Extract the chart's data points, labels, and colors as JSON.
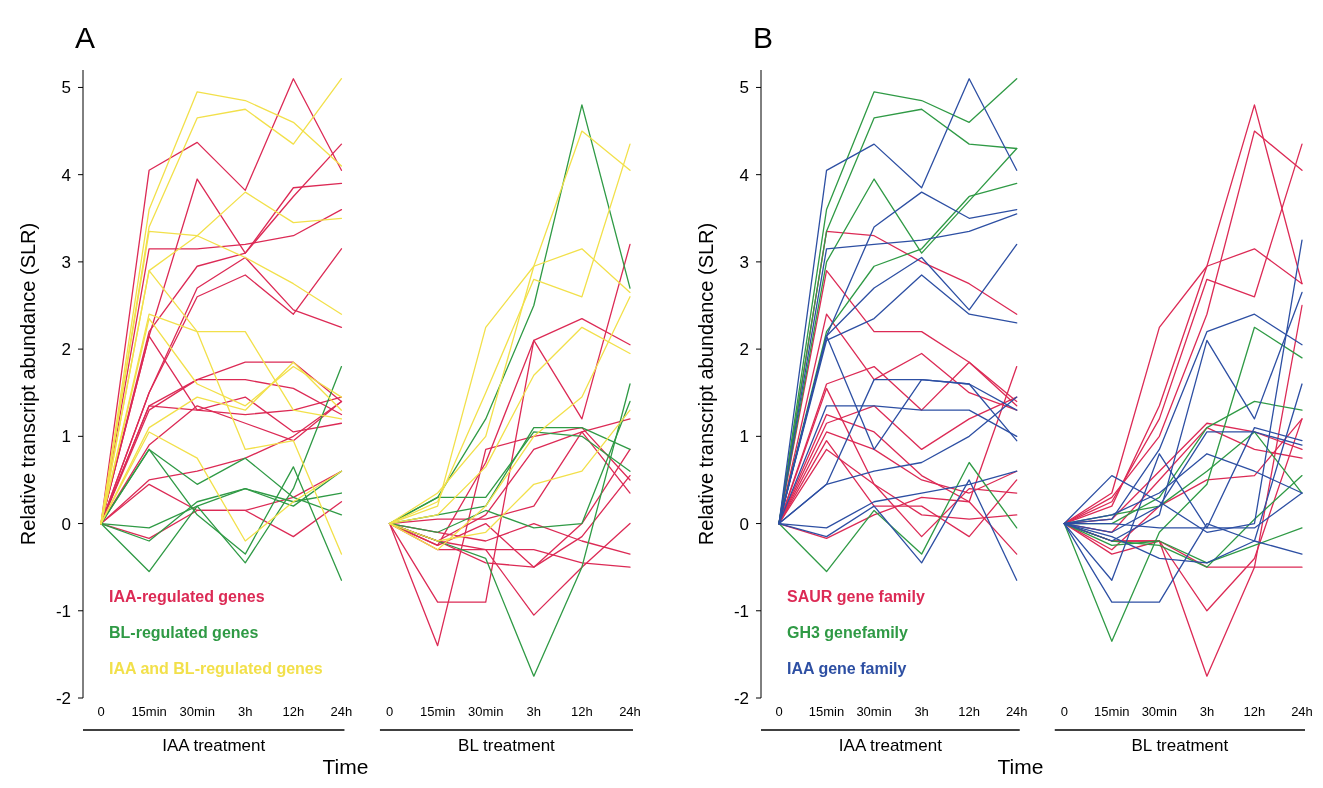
{
  "chart_data": [
    {
      "type": "line",
      "title": "A",
      "ylabel": "Relative transcript abundance (SLR)",
      "xlabel": "Time",
      "annotations": [
        "IAA treatment",
        "BL treatment"
      ],
      "legend": "bottom left",
      "categories": [
        "0",
        "15min",
        "30min",
        "3h",
        "12h",
        "24h",
        "0",
        "15min",
        "30min",
        "3h",
        "12h",
        "24h"
      ],
      "ylim": [
        -2,
        5.2
      ],
      "yticks": [
        -2,
        -1,
        0,
        1,
        2,
        3,
        4,
        5
      ],
      "series": [
        {
          "name": "IAA-regulated genes",
          "color": "#dc2a55",
          "values": [
            0,
            4.05,
            4.37,
            3.82,
            5.1,
            4.05,
            null,
            null,
            null,
            null,
            null,
            null
          ]
        },
        {
          "color": "#dc2a55",
          "values": [
            0,
            2.15,
            3.95,
            3.1,
            3.75,
            4.35,
            null,
            null,
            null,
            null,
            null,
            null
          ]
        },
        {
          "color": "#dc2a55",
          "values": [
            0,
            3.15,
            3.15,
            3.2,
            3.3,
            3.6,
            null,
            null,
            null,
            null,
            null,
            null
          ]
        },
        {
          "color": "#dc2a55",
          "values": [
            0,
            2.2,
            2.95,
            3.1,
            3.85,
            3.9,
            null,
            null,
            null,
            null,
            null,
            null
          ]
        },
        {
          "color": "#dc2a55",
          "values": [
            0,
            1.5,
            2.6,
            2.85,
            2.4,
            3.15,
            null,
            null,
            null,
            null,
            null,
            null
          ]
        },
        {
          "color": "#dc2a55",
          "values": [
            0,
            1.5,
            2.7,
            3.05,
            2.45,
            2.25,
            null,
            null,
            null,
            null,
            null,
            null
          ]
        },
        {
          "color": "#dc2a55",
          "values": [
            0,
            1.35,
            1.65,
            1.85,
            1.85,
            1.4,
            null,
            null,
            null,
            null,
            null,
            null
          ]
        },
        {
          "color": "#dc2a55",
          "values": [
            0,
            1.3,
            1.65,
            1.65,
            1.55,
            1.25,
            null,
            null,
            null,
            null,
            null,
            null
          ]
        },
        {
          "color": "#dc2a55",
          "values": [
            0,
            1.35,
            1.3,
            1.25,
            1.3,
            1.45,
            null,
            null,
            null,
            null,
            null,
            null
          ]
        },
        {
          "color": "#dc2a55",
          "values": [
            0,
            2.15,
            1.3,
            1.45,
            1.05,
            1.15,
            null,
            null,
            null,
            null,
            null,
            null
          ]
        },
        {
          "color": "#dc2a55",
          "values": [
            0,
            0.9,
            1.35,
            1.15,
            0.95,
            1.4,
            null,
            null,
            null,
            null,
            null,
            null
          ]
        },
        {
          "color": "#dc2a55",
          "values": [
            0,
            0.5,
            0.6,
            0.75,
            1.0,
            1.4,
            null,
            null,
            null,
            null,
            null,
            null
          ]
        },
        {
          "color": "#dc2a55",
          "values": [
            0,
            0.45,
            0.15,
            0.15,
            0.3,
            0.6,
            null,
            null,
            null,
            null,
            null,
            null
          ]
        },
        {
          "color": "#dc2a55",
          "values": [
            0,
            -0.17,
            0.15,
            0.15,
            -0.15,
            0.25,
            null,
            null,
            null,
            null,
            null,
            null
          ]
        },
        {
          "color": "#dc2a55",
          "values": [
            null,
            null,
            null,
            null,
            null,
            null,
            0,
            -0.25,
            0.7,
            2.1,
            2.35,
            2.05
          ]
        },
        {
          "color": "#dc2a55",
          "values": [
            null,
            null,
            null,
            null,
            null,
            null,
            0,
            -0.9,
            -0.9,
            2.1,
            1.2,
            3.2
          ]
        },
        {
          "color": "#dc2a55",
          "values": [
            null,
            null,
            null,
            null,
            null,
            null,
            0,
            -1.4,
            0.85,
            1.0,
            1.1,
            0.5
          ]
        },
        {
          "color": "#dc2a55",
          "values": [
            null,
            null,
            null,
            null,
            null,
            null,
            0,
            -0.2,
            0.1,
            0.85,
            1.05,
            1.2
          ]
        },
        {
          "color": "#dc2a55",
          "values": [
            null,
            null,
            null,
            null,
            null,
            null,
            0,
            -0.25,
            0.0,
            -0.5,
            0.0,
            0.85
          ]
        },
        {
          "color": "#dc2a55",
          "values": [
            null,
            null,
            null,
            null,
            null,
            null,
            0,
            -0.2,
            -0.45,
            -0.5,
            -0.15,
            0.55
          ]
        },
        {
          "color": "#dc2a55",
          "values": [
            null,
            null,
            null,
            null,
            null,
            null,
            0,
            -0.3,
            -0.3,
            -1.05,
            -0.5,
            0.0
          ]
        },
        {
          "color": "#dc2a55",
          "values": [
            null,
            null,
            null,
            null,
            null,
            null,
            0,
            0.05,
            0.05,
            0.2,
            1.05,
            0.35
          ]
        },
        {
          "color": "#dc2a55",
          "values": [
            null,
            null,
            null,
            null,
            null,
            null,
            0,
            -0.1,
            -0.2,
            0.0,
            -0.2,
            -0.35
          ]
        },
        {
          "color": "#dc2a55",
          "values": [
            null,
            null,
            null,
            null,
            null,
            null,
            0,
            -0.2,
            -0.3,
            -0.3,
            -0.45,
            -0.5
          ]
        },
        {
          "name": "BL-regulated genes",
          "color": "#2f9a45",
          "values": [
            0,
            0.85,
            0.45,
            0.75,
            0.3,
            0.1,
            null,
            null,
            null,
            null,
            null,
            null
          ]
        },
        {
          "color": "#2f9a45",
          "values": [
            0,
            0.85,
            0.1,
            -0.35,
            0.65,
            -0.65,
            null,
            null,
            null,
            null,
            null,
            null
          ]
        },
        {
          "color": "#2f9a45",
          "values": [
            0,
            -0.05,
            0.2,
            -0.45,
            0.4,
            1.8,
            null,
            null,
            null,
            null,
            null,
            null
          ]
        },
        {
          "color": "#2f9a45",
          "values": [
            0,
            -0.55,
            0.2,
            0.4,
            0.25,
            0.35,
            null,
            null,
            null,
            null,
            null,
            null
          ]
        },
        {
          "color": "#2f9a45",
          "values": [
            0,
            -0.2,
            0.25,
            0.4,
            0.2,
            0.6,
            null,
            null,
            null,
            null,
            null,
            null
          ]
        },
        {
          "color": "#2f9a45",
          "values": [
            null,
            null,
            null,
            null,
            null,
            null,
            0,
            0.3,
            1.2,
            2.5,
            4.8,
            2.7
          ]
        },
        {
          "color": "#2f9a45",
          "values": [
            null,
            null,
            null,
            null,
            null,
            null,
            0,
            -0.2,
            -0.4,
            -1.75,
            -0.5,
            1.6
          ]
        },
        {
          "color": "#2f9a45",
          "values": [
            null,
            null,
            null,
            null,
            null,
            null,
            0,
            0.1,
            0.2,
            1.1,
            1.1,
            0.85
          ]
        },
        {
          "color": "#2f9a45",
          "values": [
            null,
            null,
            null,
            null,
            null,
            null,
            0,
            0.3,
            0.3,
            1.05,
            1.0,
            0.6
          ]
        },
        {
          "color": "#2f9a45",
          "values": [
            null,
            null,
            null,
            null,
            null,
            null,
            0,
            -0.1,
            0.15,
            -0.05,
            0.0,
            1.4
          ]
        },
        {
          "name": "IAA and BL-regulated genes",
          "color": "#f2e04a",
          "values": [
            0,
            3.6,
            4.95,
            4.85,
            4.6,
            4.1,
            null,
            null,
            null,
            null,
            null,
            null
          ]
        },
        {
          "color": "#f2e04a",
          "values": [
            0,
            3.4,
            4.65,
            4.75,
            4.35,
            5.1,
            null,
            null,
            null,
            null,
            null,
            null
          ]
        },
        {
          "color": "#f2e04a",
          "values": [
            0,
            3.35,
            3.3,
            3.05,
            2.75,
            2.4,
            null,
            null,
            null,
            null,
            null,
            null
          ]
        },
        {
          "color": "#f2e04a",
          "values": [
            0,
            2.9,
            3.3,
            3.8,
            3.45,
            3.5,
            null,
            null,
            null,
            null,
            null,
            null
          ]
        },
        {
          "color": "#f2e04a",
          "values": [
            0,
            2.35,
            1.6,
            1.35,
            1.8,
            1.45,
            null,
            null,
            null,
            null,
            null,
            null
          ]
        },
        {
          "color": "#f2e04a",
          "values": [
            0,
            2.4,
            2.2,
            2.2,
            1.3,
            1.2,
            null,
            null,
            null,
            null,
            null,
            null
          ]
        },
        {
          "color": "#f2e04a",
          "values": [
            0,
            1.05,
            0.75,
            -0.2,
            0.25,
            0.6,
            null,
            null,
            null,
            null,
            null,
            null
          ]
        },
        {
          "color": "#f2e04a",
          "values": [
            0,
            2.9,
            2.2,
            0.85,
            0.95,
            -0.35,
            null,
            null,
            null,
            null,
            null,
            null
          ]
        },
        {
          "color": "#f2e04a",
          "values": [
            0,
            1.1,
            1.45,
            1.3,
            1.85,
            1.3,
            null,
            null,
            null,
            null,
            null,
            null
          ]
        },
        {
          "color": "#f2e04a",
          "values": [
            null,
            null,
            null,
            null,
            null,
            null,
            0,
            0.2,
            2.25,
            2.95,
            4.5,
            4.05
          ]
        },
        {
          "color": "#f2e04a",
          "values": [
            null,
            null,
            null,
            null,
            null,
            null,
            0,
            0.35,
            1.0,
            2.95,
            3.15,
            2.65
          ]
        },
        {
          "color": "#f2e04a",
          "values": [
            null,
            null,
            null,
            null,
            null,
            null,
            0,
            0.25,
            1.5,
            2.8,
            2.6,
            4.35
          ]
        },
        {
          "color": "#f2e04a",
          "values": [
            null,
            null,
            null,
            null,
            null,
            null,
            0,
            0.1,
            0.65,
            1.7,
            2.25,
            1.95
          ]
        },
        {
          "color": "#f2e04a",
          "values": [
            null,
            null,
            null,
            null,
            null,
            null,
            0,
            -0.3,
            0.2,
            1.0,
            1.45,
            2.6
          ]
        },
        {
          "color": "#f2e04a",
          "values": [
            null,
            null,
            null,
            null,
            null,
            null,
            0,
            -0.2,
            -0.1,
            0.45,
            0.6,
            1.3
          ]
        }
      ]
    },
    {
      "type": "line",
      "title": "B",
      "ylabel": "Relative transcript abundance (SLR)",
      "xlabel": "Time",
      "annotations": [
        "IAA treatment",
        "BL treatment"
      ],
      "legend": "bottom left",
      "categories": [
        "0",
        "15min",
        "30min",
        "3h",
        "12h",
        "24h",
        "0",
        "15min",
        "30min",
        "3h",
        "12h",
        "24h"
      ],
      "ylim": [
        -2,
        5.2
      ],
      "yticks": [
        -2,
        -1,
        0,
        1,
        2,
        3,
        4,
        5
      ],
      "series": [
        {
          "name": "SAUR gene family",
          "color": "#dc2a55",
          "values": [
            0,
            3.35,
            3.3,
            3.0,
            2.75,
            2.4,
            null,
            null,
            null,
            null,
            null,
            null
          ]
        },
        {
          "color": "#dc2a55",
          "values": [
            0,
            2.9,
            2.2,
            2.2,
            1.85,
            1.35,
            null,
            null,
            null,
            null,
            null,
            null
          ]
        },
        {
          "color": "#dc2a55",
          "values": [
            0,
            2.4,
            1.65,
            1.95,
            1.5,
            1.3,
            null,
            null,
            null,
            null,
            null,
            null
          ]
        },
        {
          "color": "#dc2a55",
          "values": [
            0,
            1.6,
            1.8,
            1.3,
            1.85,
            1.4,
            null,
            null,
            null,
            null,
            null,
            null
          ]
        },
        {
          "color": "#dc2a55",
          "values": [
            0,
            1.15,
            1.35,
            0.85,
            1.2,
            1.45,
            null,
            null,
            null,
            null,
            null,
            null
          ]
        },
        {
          "color": "#dc2a55",
          "values": [
            0,
            1.05,
            0.85,
            0.5,
            0.35,
            0.6,
            null,
            null,
            null,
            null,
            null,
            null
          ]
        },
        {
          "color": "#dc2a55",
          "values": [
            0,
            0.85,
            0.45,
            -0.15,
            0.4,
            0.35,
            null,
            null,
            null,
            null,
            null,
            null
          ]
        },
        {
          "color": "#dc2a55",
          "values": [
            0,
            1.55,
            0.45,
            0.1,
            0.05,
            0.1,
            null,
            null,
            null,
            null,
            null,
            null
          ]
        },
        {
          "color": "#dc2a55",
          "values": [
            0,
            0.95,
            0.2,
            0.2,
            -0.15,
            0.5,
            null,
            null,
            null,
            null,
            null,
            null
          ]
        },
        {
          "color": "#dc2a55",
          "values": [
            0,
            1.25,
            1.05,
            0.55,
            0.25,
            -0.35,
            null,
            null,
            null,
            null,
            null,
            null
          ]
        },
        {
          "color": "#dc2a55",
          "values": [
            0,
            -0.17,
            0.1,
            0.3,
            0.25,
            1.8,
            null,
            null,
            null,
            null,
            null,
            null
          ]
        },
        {
          "color": "#dc2a55",
          "values": [
            null,
            null,
            null,
            null,
            null,
            null,
            0,
            0.35,
            2.25,
            2.95,
            4.8,
            2.75
          ]
        },
        {
          "color": "#dc2a55",
          "values": [
            null,
            null,
            null,
            null,
            null,
            null,
            0,
            0.3,
            1.0,
            2.4,
            4.5,
            4.05
          ]
        },
        {
          "color": "#dc2a55",
          "values": [
            null,
            null,
            null,
            null,
            null,
            null,
            0,
            0.25,
            1.2,
            2.8,
            2.6,
            4.35
          ]
        },
        {
          "color": "#dc2a55",
          "values": [
            null,
            null,
            null,
            null,
            null,
            null,
            0,
            0.2,
            1.35,
            2.95,
            3.15,
            2.75
          ]
        },
        {
          "color": "#dc2a55",
          "values": [
            null,
            null,
            null,
            null,
            null,
            null,
            0,
            -0.35,
            -0.2,
            -1.75,
            -0.5,
            2.5
          ]
        },
        {
          "color": "#dc2a55",
          "values": [
            null,
            null,
            null,
            null,
            null,
            null,
            0,
            -0.2,
            -0.2,
            -1.0,
            -0.4,
            1.2
          ]
        },
        {
          "color": "#dc2a55",
          "values": [
            null,
            null,
            null,
            null,
            null,
            null,
            0,
            0.05,
            0.6,
            1.15,
            1.05,
            0.85
          ]
        },
        {
          "color": "#dc2a55",
          "values": [
            null,
            null,
            null,
            null,
            null,
            null,
            0,
            -0.1,
            0.5,
            1.1,
            0.85,
            0.75
          ]
        },
        {
          "color": "#dc2a55",
          "values": [
            null,
            null,
            null,
            null,
            null,
            null,
            0,
            -0.3,
            0.2,
            0.5,
            0.55,
            1.2
          ]
        },
        {
          "color": "#dc2a55",
          "values": [
            null,
            null,
            null,
            null,
            null,
            null,
            0,
            -0.2,
            -0.2,
            -0.5,
            -0.5,
            -0.5
          ]
        },
        {
          "name": "GH3 genefamily",
          "color": "#2f9a45",
          "values": [
            0,
            3.6,
            4.95,
            4.85,
            4.6,
            5.1,
            null,
            null,
            null,
            null,
            null,
            null
          ]
        },
        {
          "color": "#2f9a45",
          "values": [
            0,
            3.35,
            4.65,
            4.75,
            4.35,
            4.3,
            null,
            null,
            null,
            null,
            null,
            null
          ]
        },
        {
          "color": "#2f9a45",
          "values": [
            0,
            3.0,
            3.95,
            3.1,
            3.7,
            4.3,
            null,
            null,
            null,
            null,
            null,
            null
          ]
        },
        {
          "color": "#2f9a45",
          "values": [
            0,
            2.2,
            2.95,
            3.15,
            3.75,
            3.9,
            null,
            null,
            null,
            null,
            null,
            null
          ]
        },
        {
          "color": "#2f9a45",
          "values": [
            0,
            -0.55,
            0.15,
            -0.35,
            0.7,
            -0.05,
            null,
            null,
            null,
            null,
            null,
            null
          ]
        },
        {
          "color": "#2f9a45",
          "values": [
            null,
            null,
            null,
            null,
            null,
            null,
            0,
            -1.35,
            -0.1,
            0.45,
            2.25,
            1.9
          ]
        },
        {
          "color": "#2f9a45",
          "values": [
            null,
            null,
            null,
            null,
            null,
            null,
            0,
            0.0,
            0.3,
            1.1,
            1.4,
            1.3
          ]
        },
        {
          "color": "#2f9a45",
          "values": [
            null,
            null,
            null,
            null,
            null,
            null,
            0,
            -0.2,
            -0.25,
            -0.5,
            0.05,
            0.55
          ]
        },
        {
          "color": "#2f9a45",
          "values": [
            null,
            null,
            null,
            null,
            null,
            null,
            0,
            0.1,
            0.2,
            0.6,
            1.05,
            0.35
          ]
        },
        {
          "color": "#2f9a45",
          "values": [
            null,
            null,
            null,
            null,
            null,
            null,
            0,
            -0.25,
            -0.2,
            -0.45,
            -0.25,
            -0.05
          ]
        },
        {
          "name": "IAA gene family",
          "color": "#2d4fa3",
          "values": [
            0,
            4.05,
            4.35,
            3.85,
            5.1,
            4.05,
            null,
            null,
            null,
            null,
            null,
            null
          ]
        },
        {
          "color": "#2d4fa3",
          "values": [
            0,
            3.15,
            3.2,
            3.25,
            3.35,
            3.55,
            null,
            null,
            null,
            null,
            null,
            null
          ]
        },
        {
          "color": "#2d4fa3",
          "values": [
            0,
            2.15,
            3.4,
            3.8,
            3.5,
            3.6,
            null,
            null,
            null,
            null,
            null,
            null
          ]
        },
        {
          "color": "#2d4fa3",
          "values": [
            0,
            2.15,
            2.7,
            3.05,
            2.45,
            3.2,
            null,
            null,
            null,
            null,
            null,
            null
          ]
        },
        {
          "color": "#2d4fa3",
          "values": [
            0,
            2.1,
            2.35,
            2.85,
            2.4,
            2.3,
            null,
            null,
            null,
            null,
            null,
            null
          ]
        },
        {
          "color": "#2d4fa3",
          "values": [
            0,
            1.35,
            1.35,
            1.3,
            1.3,
            1.0,
            null,
            null,
            null,
            null,
            null,
            null
          ]
        },
        {
          "color": "#2d4fa3",
          "values": [
            0,
            2.15,
            0.85,
            1.65,
            1.6,
            0.95,
            null,
            null,
            null,
            null,
            null,
            null
          ]
        },
        {
          "color": "#2d4fa3",
          "values": [
            0,
            0.45,
            1.65,
            1.65,
            1.6,
            1.3,
            null,
            null,
            null,
            null,
            null,
            null
          ]
        },
        {
          "color": "#2d4fa3",
          "values": [
            0,
            0.45,
            0.6,
            0.7,
            1.0,
            1.45,
            null,
            null,
            null,
            null,
            null,
            null
          ]
        },
        {
          "color": "#2d4fa3",
          "values": [
            0,
            -0.15,
            0.2,
            -0.45,
            0.5,
            -0.65,
            null,
            null,
            null,
            null,
            null,
            null
          ]
        },
        {
          "color": "#2d4fa3",
          "values": [
            0,
            -0.05,
            0.25,
            0.35,
            0.45,
            0.6,
            null,
            null,
            null,
            null,
            null,
            null
          ]
        },
        {
          "color": "#2d4fa3",
          "values": [
            null,
            null,
            null,
            null,
            null,
            null,
            0,
            0.55,
            0.25,
            -0.1,
            0.0,
            3.25
          ]
        },
        {
          "color": "#2d4fa3",
          "values": [
            null,
            null,
            null,
            null,
            null,
            null,
            0,
            0.05,
            0.85,
            2.2,
            2.4,
            2.05
          ]
        },
        {
          "color": "#2d4fa3",
          "values": [
            null,
            null,
            null,
            null,
            null,
            null,
            0,
            -0.2,
            0.1,
            2.1,
            1.2,
            2.65
          ]
        },
        {
          "color": "#2d4fa3",
          "values": [
            null,
            null,
            null,
            null,
            null,
            null,
            0,
            -0.65,
            0.8,
            -0.05,
            1.1,
            0.95
          ]
        },
        {
          "color": "#2d4fa3",
          "values": [
            null,
            null,
            null,
            null,
            null,
            null,
            0,
            -0.9,
            -0.9,
            0.0,
            -0.2,
            1.6
          ]
        },
        {
          "color": "#2d4fa3",
          "values": [
            null,
            null,
            null,
            null,
            null,
            null,
            0,
            -0.1,
            0.2,
            1.05,
            1.05,
            0.9
          ]
        },
        {
          "color": "#2d4fa3",
          "values": [
            null,
            null,
            null,
            null,
            null,
            null,
            0,
            0.0,
            -0.05,
            -0.05,
            -0.05,
            0.35
          ]
        },
        {
          "color": "#2d4fa3",
          "values": [
            null,
            null,
            null,
            null,
            null,
            null,
            0,
            -0.15,
            -0.4,
            -0.45,
            -0.2,
            -0.35
          ]
        },
        {
          "color": "#2d4fa3",
          "values": [
            null,
            null,
            null,
            null,
            null,
            null,
            0,
            0.1,
            0.35,
            0.8,
            0.6,
            0.35
          ]
        }
      ]
    }
  ]
}
